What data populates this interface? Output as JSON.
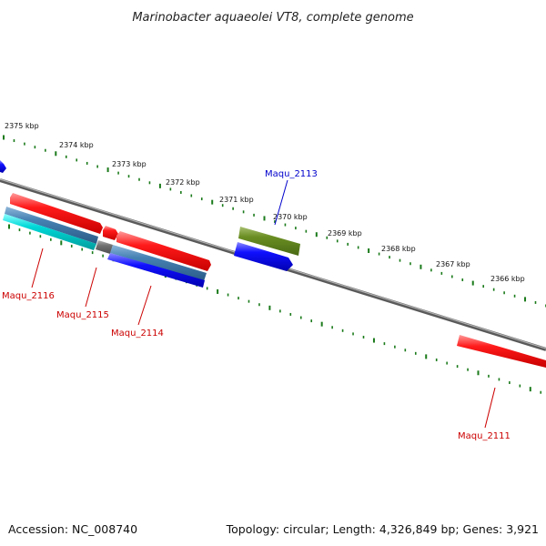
{
  "title": "Marinobacter aquaeolei VT8, complete genome",
  "footer": {
    "accession": "Accession: NC_008740",
    "summary": "Topology: circular; Length: 4,326,849 bp; Genes: 3,921"
  },
  "colors": {
    "backbone": "#808080",
    "tick": "#1a7a1a",
    "forward_gene": "#ff0000",
    "reverse_gene": "#0000ff",
    "label_red": "#cc0000",
    "label_blue": "#0000cc",
    "olive_gene": "#6b8e23",
    "steel_gene": "#4682b4",
    "cyan_gene": "#00cccc",
    "grey_gene": "#707070"
  },
  "kbp_labels": [
    "2375 kbp",
    "2374 kbp",
    "2373 kbp",
    "2372 kbp",
    "2371 kbp",
    "2370 kbp",
    "2369 kbp",
    "2368 kbp",
    "2367 kbp",
    "2366 kbp"
  ],
  "gene_labels": [
    {
      "name": "Maqu_2113",
      "color": "blue"
    },
    {
      "name": "Maqu_2116",
      "color": "red"
    },
    {
      "name": "Maqu_2115",
      "color": "red"
    },
    {
      "name": "Maqu_2114",
      "color": "red"
    },
    {
      "name": "Maqu_2111",
      "color": "red"
    }
  ]
}
